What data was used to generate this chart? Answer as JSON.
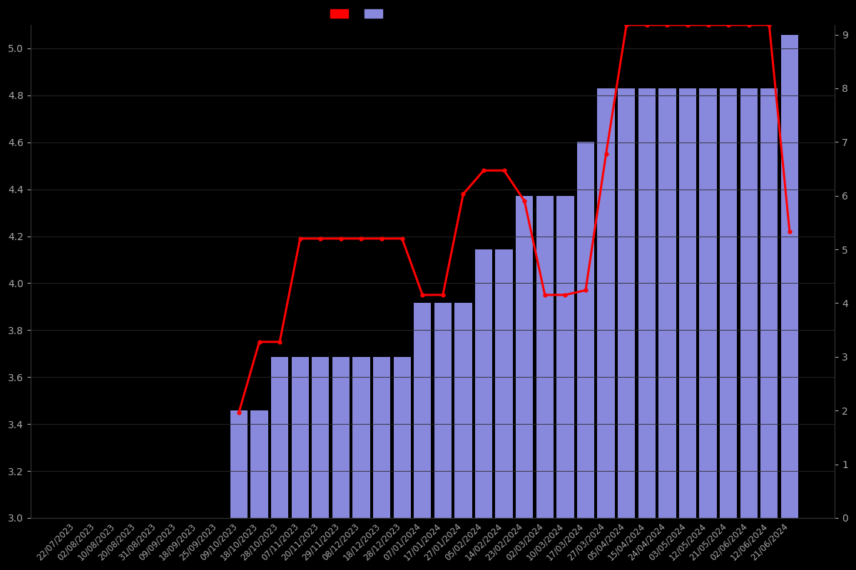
{
  "dates": [
    "22/07/2023",
    "02/08/2023",
    "10/08/2023",
    "20/08/2023",
    "31/08/2023",
    "09/09/2023",
    "18/09/2023",
    "25/09/2023",
    "09/10/2023",
    "18/10/2023",
    "28/10/2023",
    "07/11/2023",
    "20/11/2023",
    "29/11/2023",
    "08/12/2023",
    "18/12/2023",
    "28/12/2023",
    "07/01/2024",
    "17/01/2024",
    "27/01/2024",
    "05/02/2024",
    "14/02/2024",
    "23/02/2024",
    "02/03/2024",
    "10/03/2024",
    "17/03/2024",
    "27/03/2024",
    "05/04/2024",
    "15/04/2024",
    "24/04/2024",
    "03/05/2024",
    "12/05/2024",
    "21/05/2024",
    "02/06/2024",
    "12/06/2024",
    "21/06/2024"
  ],
  "bar_values": [
    0,
    0,
    0,
    0,
    0,
    0,
    0,
    0,
    2,
    2,
    3,
    3,
    3,
    3,
    3,
    3,
    3,
    4,
    4,
    4,
    5,
    5,
    6,
    6,
    6,
    7,
    8,
    8,
    8,
    8,
    8,
    8,
    8,
    8,
    8,
    9
  ],
  "line_values": [
    null,
    null,
    null,
    null,
    null,
    null,
    null,
    null,
    3.45,
    3.75,
    3.75,
    4.19,
    4.19,
    4.19,
    4.19,
    4.19,
    4.19,
    3.95,
    3.95,
    4.38,
    4.48,
    4.48,
    4.35,
    3.95,
    3.95,
    3.97,
    4.55,
    5.1,
    5.1,
    5.1,
    5.1,
    5.1,
    5.1,
    5.1,
    5.1,
    4.22
  ],
  "bar_color": "#8888dd",
  "line_color": "#ff0000",
  "background_color": "#000000",
  "text_color": "#aaaaaa",
  "ylim_left": [
    3.0,
    5.1
  ],
  "ylim_right": [
    0,
    9.18
  ],
  "yticks_left": [
    3.0,
    3.2,
    3.4,
    3.6,
    3.8,
    4.0,
    4.2,
    4.4,
    4.6,
    4.8,
    5.0
  ],
  "yticks_right": [
    0,
    1,
    2,
    3,
    4,
    5,
    6,
    7,
    8,
    9
  ],
  "grid_color": "#2a2a2a",
  "spine_color": "#333333"
}
